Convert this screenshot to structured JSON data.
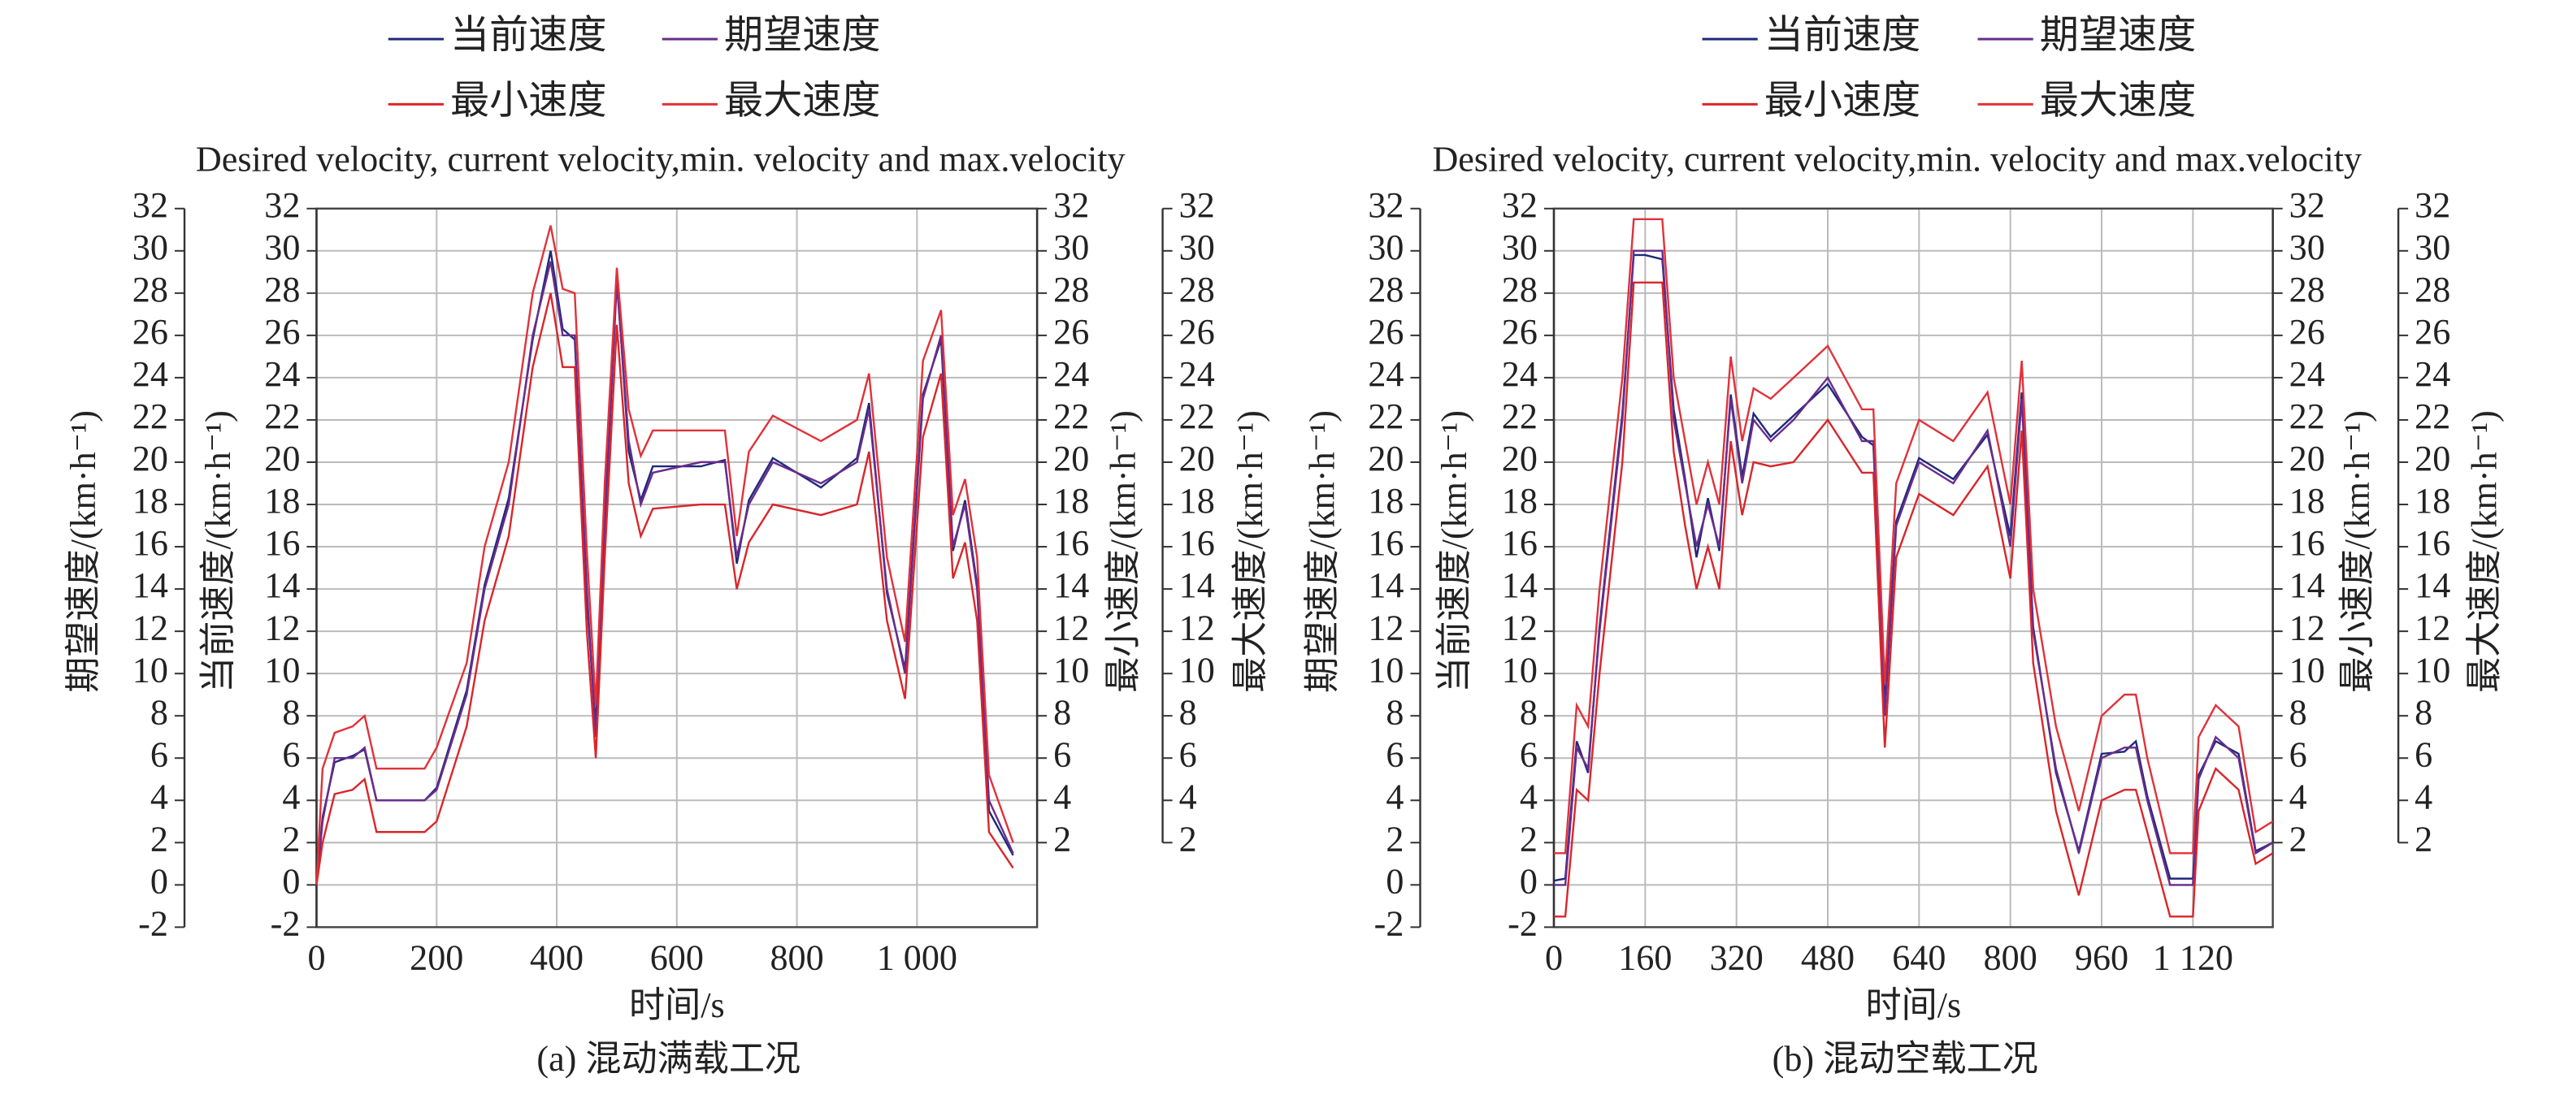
{
  "chart_data": [
    {
      "type": "line",
      "title": "Desired velocity, current velocity,min. velocity and max.velocity",
      "caption": "(a) 混动满载工况",
      "xlabel": "时间/s",
      "xlim": [
        0,
        1200
      ],
      "xticks": [
        0,
        200,
        400,
        600,
        800,
        {
          "value": 1000,
          "label": "1 000"
        }
      ],
      "ylim": [
        -2,
        32
      ],
      "grid": true,
      "y_axes": [
        {
          "label": "期望速度/(km·h⁻¹)",
          "ticks": [
            -2,
            0,
            2,
            4,
            6,
            8,
            10,
            12,
            14,
            16,
            18,
            20,
            22,
            24,
            26,
            28,
            30,
            32
          ]
        },
        {
          "label": "当前速度/(km·h⁻¹)",
          "ticks": [
            -2,
            0,
            2,
            4,
            6,
            8,
            10,
            12,
            14,
            16,
            18,
            20,
            22,
            24,
            26,
            28,
            30,
            32
          ]
        },
        {
          "label": "最小速度/(km·h⁻¹)",
          "ticks": [
            2,
            4,
            6,
            8,
            10,
            12,
            14,
            16,
            18,
            20,
            22,
            24,
            26,
            28,
            30,
            32
          ]
        },
        {
          "label": "最大速度/(km·h⁻¹)",
          "ticks": [
            2,
            4,
            6,
            8,
            10,
            12,
            14,
            16,
            18,
            20,
            22,
            24,
            26,
            28,
            30,
            32
          ]
        }
      ],
      "x": [
        0,
        10,
        30,
        60,
        80,
        100,
        180,
        200,
        250,
        280,
        320,
        360,
        390,
        410,
        430,
        450,
        465,
        480,
        500,
        520,
        540,
        560,
        640,
        680,
        700,
        720,
        760,
        840,
        900,
        920,
        950,
        980,
        1010,
        1040,
        1060,
        1080,
        1100,
        1120,
        1160
      ],
      "series": [
        {
          "name": "当前速度",
          "color": "#1f2a7a",
          "values": [
            0,
            3.2,
            5.8,
            6.1,
            6.4,
            4,
            4,
            4.6,
            9.2,
            14.2,
            18.3,
            25.8,
            30,
            26.3,
            25.8,
            13.5,
            7.5,
            17.5,
            28.8,
            20.5,
            18.2,
            19.8,
            19.8,
            20.1,
            15.2,
            18.2,
            20.2,
            18.8,
            20.2,
            22.8,
            13.8,
            10.2,
            23.2,
            25.8,
            15.8,
            18.2,
            14.2,
            3.5,
            1.4
          ]
        },
        {
          "name": "期望速度",
          "color": "#6a2c8c",
          "values": [
            0,
            3,
            6,
            6,
            6.5,
            4,
            4,
            4.5,
            9,
            14,
            18,
            26,
            29.5,
            26,
            26,
            14,
            7,
            17,
            28.5,
            21,
            18,
            19.5,
            20,
            20,
            15.5,
            18,
            20,
            19,
            20,
            22.5,
            14,
            10,
            23,
            26,
            16,
            18,
            14,
            4,
            1.5
          ]
        },
        {
          "name": "最小速度",
          "color": "#d9262b",
          "values": [
            0,
            2,
            4.3,
            4.5,
            5,
            2.5,
            2.5,
            3,
            7.5,
            12.5,
            16.5,
            24.5,
            28,
            24.5,
            24.5,
            12,
            6,
            15.5,
            26.5,
            19,
            16.5,
            17.8,
            18,
            18,
            14,
            16.2,
            18,
            17.5,
            18,
            20.5,
            12.5,
            8.8,
            21.2,
            24.2,
            14.5,
            16.2,
            12.5,
            2.5,
            0.8
          ]
        },
        {
          "name": "最大速度",
          "color": "#e0323a",
          "values": [
            0,
            5.5,
            7.2,
            7.5,
            8,
            5.5,
            5.5,
            6.5,
            10.5,
            16,
            20,
            28,
            31.2,
            28.2,
            28,
            15.8,
            8.5,
            19,
            29.2,
            22.5,
            20.3,
            21.5,
            21.5,
            21.5,
            16.5,
            20.5,
            22.2,
            21,
            22,
            24.2,
            15.5,
            11.5,
            24.8,
            27.2,
            17.5,
            19.2,
            15.5,
            5.2,
            2
          ]
        }
      ]
    },
    {
      "type": "line",
      "title": "Desired velocity, current velocity,min. velocity and max.velocity",
      "caption": "(b) 混动空载工况",
      "xlabel": "时间/s",
      "xlim": [
        0,
        1260
      ],
      "xticks": [
        0,
        160,
        320,
        480,
        640,
        800,
        960,
        {
          "value": 1120,
          "label": "1 120"
        }
      ],
      "ylim": [
        -2,
        32
      ],
      "grid": true,
      "y_axes": [
        {
          "label": "期望速度/(km·h⁻¹)",
          "ticks": [
            -2,
            0,
            2,
            4,
            6,
            8,
            10,
            12,
            14,
            16,
            18,
            20,
            22,
            24,
            26,
            28,
            30,
            32
          ]
        },
        {
          "label": "当前速度/(km·h⁻¹)",
          "ticks": [
            -2,
            0,
            2,
            4,
            6,
            8,
            10,
            12,
            14,
            16,
            18,
            20,
            22,
            24,
            26,
            28,
            30,
            32
          ]
        },
        {
          "label": "最小速度/(km·h⁻¹)",
          "ticks": [
            2,
            4,
            6,
            8,
            10,
            12,
            14,
            16,
            18,
            20,
            22,
            24,
            26,
            28,
            30,
            32
          ]
        },
        {
          "label": "最大速度/(km·h⁻¹)",
          "ticks": [
            2,
            4,
            6,
            8,
            10,
            12,
            14,
            16,
            18,
            20,
            22,
            24,
            26,
            28,
            30,
            32
          ]
        }
      ],
      "x": [
        0,
        20,
        40,
        60,
        80,
        120,
        140,
        160,
        190,
        210,
        230,
        250,
        270,
        290,
        310,
        330,
        350,
        380,
        420,
        480,
        540,
        560,
        580,
        600,
        640,
        700,
        760,
        800,
        820,
        840,
        880,
        920,
        960,
        1000,
        1020,
        1040,
        1080,
        1120,
        1130,
        1160,
        1200,
        1230,
        1260
      ],
      "series": [
        {
          "name": "当前速度",
          "color": "#1f2a7a",
          "values": [
            0.2,
            0.3,
            6.8,
            5.3,
            12.2,
            22.3,
            29.8,
            29.8,
            29.6,
            22.5,
            19.2,
            15.5,
            18.3,
            15.8,
            23.2,
            19.3,
            22.3,
            21.2,
            22.2,
            23.7,
            21.2,
            20.8,
            8.5,
            17.2,
            20.2,
            19.2,
            21.3,
            16.5,
            23.3,
            12.2,
            5.3,
            1.6,
            6.2,
            6.3,
            6.8,
            4.2,
            0.3,
            0.3,
            5.2,
            6.8,
            6.2,
            1.6,
            2
          ]
        },
        {
          "name": "期望速度",
          "color": "#6a2c8c",
          "values": [
            0,
            0,
            6.5,
            5.5,
            12,
            22,
            30,
            30,
            30,
            22,
            19,
            16,
            18,
            16,
            23,
            19,
            22,
            21,
            22,
            24,
            21,
            21,
            8,
            17,
            20,
            19,
            21.5,
            16,
            23,
            12,
            5.5,
            1.5,
            6,
            6.5,
            6.5,
            4,
            0,
            0,
            5,
            7,
            6,
            1.5,
            2
          ]
        },
        {
          "name": "最小速度",
          "color": "#d9262b",
          "values": [
            -1.5,
            -1.5,
            4.5,
            4,
            10,
            20,
            28.5,
            28.5,
            28.5,
            20.5,
            17,
            14,
            16,
            14,
            21,
            17.5,
            20,
            19.8,
            20,
            22,
            19.5,
            19.5,
            6.5,
            15.5,
            18.5,
            17.5,
            19.8,
            14.5,
            21.5,
            10.5,
            3.5,
            -0.5,
            4,
            4.5,
            4.5,
            2.5,
            -1.5,
            -1.5,
            3.5,
            5.5,
            4.5,
            1,
            1.5
          ]
        },
        {
          "name": "最大速度",
          "color": "#e0323a",
          "values": [
            1.5,
            1.5,
            8.5,
            7.5,
            14,
            24,
            31.5,
            31.5,
            31.5,
            24,
            21,
            18,
            20,
            18,
            25,
            21,
            23.5,
            23,
            24,
            25.5,
            22.5,
            22.5,
            9.5,
            19,
            22,
            21,
            23.3,
            18,
            24.8,
            14,
            7.5,
            3.5,
            8,
            9,
            9,
            6,
            1.5,
            1.5,
            7,
            8.5,
            7.5,
            2.5,
            3
          ]
        }
      ]
    }
  ]
}
